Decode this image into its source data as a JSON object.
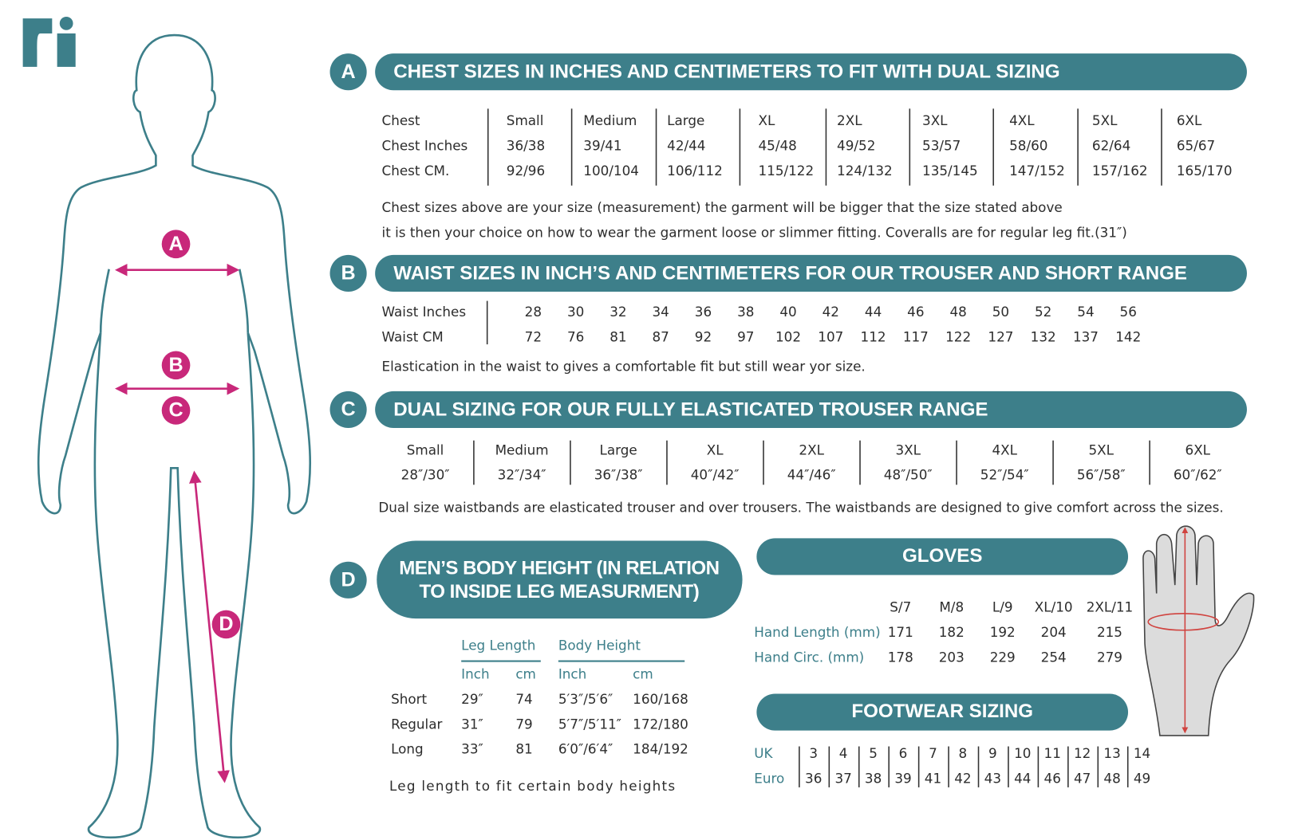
{
  "chest": {
    "letter": "A",
    "title": "CHEST SIZES IN INCHES AND CENTIMETERS TO FIT WITH DUAL SIZING",
    "rows": [
      [
        "Chest",
        "Small",
        "Medium",
        "Large",
        "XL",
        "2XL",
        "3XL",
        "4XL",
        "5XL",
        "6XL"
      ],
      [
        "Chest Inches",
        "36/38",
        "39/41",
        "42/44",
        "45/48",
        "49/52",
        "53/57",
        "58/60",
        "62/64",
        "65/67"
      ],
      [
        "Chest CM.",
        "92/96",
        "100/104",
        "106/112",
        "115/122",
        "124/132",
        "135/145",
        "147/152",
        "157/162",
        "165/170"
      ]
    ],
    "notes": [
      "Chest sizes above are your size (measurement) the garment will be bigger that the size stated above",
      "it is then your choice on how to wear the garment loose or slimmer fitting. Coveralls are for regular leg fit.(31″)"
    ]
  },
  "waist": {
    "letter": "B",
    "title": "WAIST SIZES IN INCH’S AND CENTIMETERS FOR OUR TROUSER AND SHORT RANGE",
    "rows": [
      {
        "label": "Waist Inches",
        "values": [
          28,
          30,
          32,
          34,
          36,
          38,
          40,
          42,
          44,
          46,
          48,
          50,
          52,
          54,
          56
        ]
      },
      {
        "label": "Waist CM",
        "values": [
          72,
          76,
          81,
          87,
          92,
          97,
          102,
          107,
          112,
          117,
          122,
          127,
          132,
          137,
          142
        ]
      }
    ],
    "note": "Elastication in the waist to gives a comfortable fit but still wear yor size."
  },
  "dual": {
    "letter": "C",
    "title": "DUAL SIZING FOR OUR FULLY ELASTICATED TROUSER RANGE",
    "rows": [
      [
        "Small",
        "Medium",
        "Large",
        "XL",
        "2XL",
        "3XL",
        "4XL",
        "5XL",
        "6XL"
      ],
      [
        "28″/30″",
        "32″/34″",
        "36″/38″",
        "40″/42″",
        "44″/46″",
        "48″/50″",
        "52″/54″",
        "56″/58″",
        "60″/62″"
      ]
    ],
    "note": "Dual size waistbands are elasticated trouser and over trousers. The waistbands are designed to give comfort across the sizes."
  },
  "height": {
    "letter": "D",
    "title_lines": [
      "MEN’S BODY HEIGHT (IN RELATION",
      "TO INSIDE LEG MEASURMENT)"
    ],
    "groups": [
      "Leg Length",
      "Body Height"
    ],
    "units": [
      "Inch",
      "cm",
      "Inch",
      "cm"
    ],
    "rows": [
      [
        "Short",
        "29″",
        "74",
        "5′3″/5′6″",
        "160/168"
      ],
      [
        "Regular",
        "31″",
        "79",
        "5′7″/5′11″",
        "172/180"
      ],
      [
        "Long",
        "33″",
        "81",
        "6′0″/6′4″",
        "184/192"
      ]
    ],
    "note": "Leg length to fit certain body heights"
  },
  "gloves": {
    "title": "GLOVES",
    "sizes": [
      "S/7",
      "M/8",
      "L/9",
      "XL/10",
      "2XL/11"
    ],
    "rows": [
      {
        "label": "Hand Length (mm)",
        "values": [
          171,
          182,
          192,
          204,
          215
        ]
      },
      {
        "label": "Hand Circ. (mm)",
        "values": [
          178,
          203,
          229,
          254,
          279
        ]
      }
    ]
  },
  "footwear": {
    "title": "FOOTWEAR SIZING",
    "rows": [
      {
        "label": "UK",
        "values": [
          3,
          4,
          5,
          6,
          7,
          8,
          9,
          10,
          11,
          12,
          13,
          14
        ]
      },
      {
        "label": "Euro",
        "values": [
          36,
          37,
          38,
          39,
          41,
          42,
          43,
          44,
          46,
          47,
          48,
          49
        ]
      }
    ]
  }
}
